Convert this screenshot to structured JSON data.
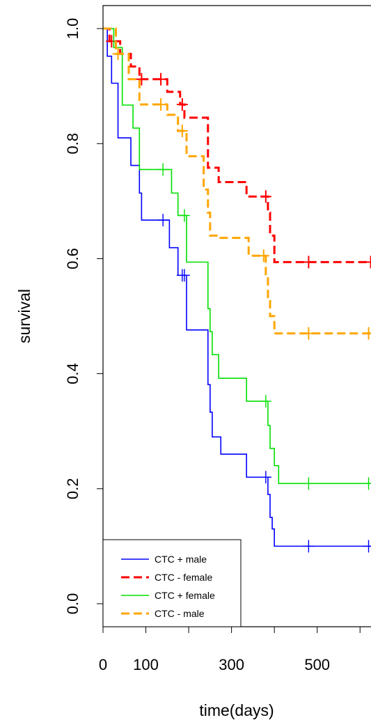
{
  "chart_data": {
    "type": "line",
    "title": "",
    "xlabel": "time(days)",
    "ylabel": "survival",
    "xlim": [
      0,
      650
    ],
    "ylim": [
      -0.04,
      1.04
    ],
    "x_ticks": [
      {
        "value": 0,
        "label": "0"
      },
      {
        "value": 100,
        "label": "100"
      },
      {
        "value": 300,
        "label": "300"
      },
      {
        "value": 500,
        "label": "500"
      }
    ],
    "x_minor_ticks": [
      200,
      400,
      600
    ],
    "y_ticks": [
      {
        "value": 0.0,
        "label": "0.0"
      },
      {
        "value": 0.2,
        "label": "0.2"
      },
      {
        "value": 0.4,
        "label": "0.4"
      },
      {
        "value": 0.6,
        "label": "0.6"
      },
      {
        "value": 0.8,
        "label": "0.8"
      },
      {
        "value": 1.0,
        "label": "1.0"
      }
    ],
    "grid": false,
    "legend": {
      "position": "bottom-left"
    },
    "series": [
      {
        "name": "CTC + male",
        "color": "#0000ff",
        "dash": "solid",
        "steps": [
          [
            0,
            1.0
          ],
          [
            10,
            0.952
          ],
          [
            20,
            0.905
          ],
          [
            35,
            0.81
          ],
          [
            65,
            0.762
          ],
          [
            85,
            0.714
          ],
          [
            90,
            0.667
          ],
          [
            140,
            0.667
          ],
          [
            155,
            0.619
          ],
          [
            175,
            0.571
          ],
          [
            195,
            0.571
          ],
          [
            195,
            0.476
          ],
          [
            245,
            0.476
          ],
          [
            245,
            0.381
          ],
          [
            250,
            0.333
          ],
          [
            255,
            0.29
          ],
          [
            275,
            0.26
          ],
          [
            335,
            0.22
          ],
          [
            380,
            0.22
          ],
          [
            385,
            0.19
          ],
          [
            390,
            0.15
          ],
          [
            395,
            0.13
          ],
          [
            400,
            0.1
          ],
          [
            410,
            0.1
          ],
          [
            650,
            0.1
          ]
        ],
        "censors": [
          [
            140,
            0.667
          ],
          [
            185,
            0.571
          ],
          [
            190,
            0.571
          ],
          [
            380,
            0.22
          ],
          [
            480,
            0.1
          ],
          [
            620,
            0.1
          ],
          [
            650,
            0.1
          ]
        ]
      },
      {
        "name": "CTC - female",
        "color": "#ff0000",
        "dash": "dashed",
        "steps": [
          [
            0,
            1.0
          ],
          [
            15,
            0.978
          ],
          [
            40,
            0.956
          ],
          [
            65,
            0.934
          ],
          [
            85,
            0.912
          ],
          [
            140,
            0.912
          ],
          [
            150,
            0.89
          ],
          [
            170,
            0.89
          ],
          [
            180,
            0.868
          ],
          [
            190,
            0.845
          ],
          [
            230,
            0.845
          ],
          [
            245,
            0.758
          ],
          [
            270,
            0.733
          ],
          [
            330,
            0.733
          ],
          [
            335,
            0.708
          ],
          [
            375,
            0.708
          ],
          [
            385,
            0.68
          ],
          [
            390,
            0.64
          ],
          [
            400,
            0.594
          ],
          [
            650,
            0.594
          ]
        ],
        "censors": [
          [
            20,
            0.978
          ],
          [
            90,
            0.912
          ],
          [
            135,
            0.912
          ],
          [
            185,
            0.868
          ],
          [
            380,
            0.708
          ],
          [
            480,
            0.594
          ],
          [
            625,
            0.594
          ],
          [
            650,
            0.594
          ]
        ]
      },
      {
        "name": "CTC + female",
        "color": "#00e000",
        "dash": "solid",
        "steps": [
          [
            0,
            1.0
          ],
          [
            25,
            0.967
          ],
          [
            45,
            0.867
          ],
          [
            70,
            0.827
          ],
          [
            85,
            0.755
          ],
          [
            145,
            0.755
          ],
          [
            160,
            0.714
          ],
          [
            175,
            0.675
          ],
          [
            195,
            0.675
          ],
          [
            195,
            0.594
          ],
          [
            240,
            0.594
          ],
          [
            245,
            0.513
          ],
          [
            250,
            0.473
          ],
          [
            255,
            0.433
          ],
          [
            270,
            0.392
          ],
          [
            330,
            0.392
          ],
          [
            335,
            0.352
          ],
          [
            380,
            0.352
          ],
          [
            385,
            0.31
          ],
          [
            390,
            0.27
          ],
          [
            400,
            0.24
          ],
          [
            410,
            0.209
          ],
          [
            650,
            0.209
          ]
        ],
        "censors": [
          [
            140,
            0.755
          ],
          [
            190,
            0.675
          ],
          [
            380,
            0.352
          ],
          [
            480,
            0.209
          ],
          [
            620,
            0.209
          ],
          [
            650,
            0.209
          ]
        ]
      },
      {
        "name": "CTC - male",
        "color": "#ffa500",
        "dash": "dashed",
        "steps": [
          [
            0,
            1.0
          ],
          [
            30,
            0.956
          ],
          [
            60,
            0.912
          ],
          [
            85,
            0.868
          ],
          [
            140,
            0.868
          ],
          [
            150,
            0.85
          ],
          [
            175,
            0.822
          ],
          [
            190,
            0.822
          ],
          [
            195,
            0.778
          ],
          [
            230,
            0.778
          ],
          [
            235,
            0.72
          ],
          [
            245,
            0.68
          ],
          [
            250,
            0.64
          ],
          [
            270,
            0.636
          ],
          [
            330,
            0.636
          ],
          [
            340,
            0.605
          ],
          [
            375,
            0.605
          ],
          [
            380,
            0.57
          ],
          [
            385,
            0.53
          ],
          [
            390,
            0.5
          ],
          [
            400,
            0.47
          ],
          [
            650,
            0.47
          ]
        ],
        "censors": [
          [
            35,
            0.956
          ],
          [
            135,
            0.868
          ],
          [
            185,
            0.822
          ],
          [
            375,
            0.605
          ],
          [
            480,
            0.47
          ],
          [
            620,
            0.47
          ],
          [
            650,
            0.47
          ]
        ]
      }
    ]
  }
}
